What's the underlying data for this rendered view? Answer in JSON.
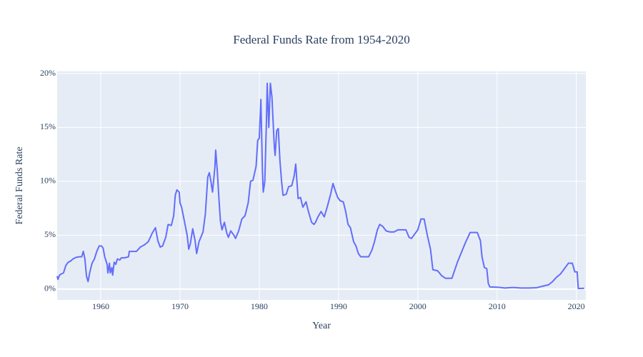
{
  "chart_data": {
    "type": "line",
    "title": "Federal Funds Rate from 1954-2020",
    "x_label": "Year",
    "y_label": "Federal Funds Rate",
    "color": "#636efa",
    "grid": true,
    "xlim": [
      1954.5,
      2021.2
    ],
    "ylim": [
      -1.0,
      20.2
    ],
    "xticks": [
      1960,
      1970,
      1980,
      1990,
      2000,
      2010,
      2020
    ],
    "yticks": [
      {
        "value": 0,
        "label": "0%"
      },
      {
        "value": 5,
        "label": "5%"
      },
      {
        "value": 10,
        "label": "10%"
      },
      {
        "value": 15,
        "label": "15%"
      },
      {
        "value": 20,
        "label": "20%"
      }
    ],
    "x": [
      1954.5,
      1954.6,
      1954.8,
      1955.0,
      1955.3,
      1955.6,
      1955.9,
      1956.2,
      1956.5,
      1956.9,
      1957.3,
      1957.6,
      1957.8,
      1958.0,
      1958.2,
      1958.4,
      1958.6,
      1958.9,
      1959.2,
      1959.5,
      1959.8,
      1960.1,
      1960.3,
      1960.5,
      1960.8,
      1960.9,
      1961.1,
      1961.2,
      1961.4,
      1961.5,
      1961.7,
      1961.9,
      1962.1,
      1962.4,
      1962.6,
      1963.0,
      1963.5,
      1963.6,
      1964.0,
      1964.5,
      1965.0,
      1965.5,
      1966.0,
      1966.5,
      1966.9,
      1967.2,
      1967.5,
      1967.8,
      1968.2,
      1968.5,
      1968.9,
      1969.2,
      1969.4,
      1969.6,
      1969.9,
      1970.0,
      1970.2,
      1970.5,
      1970.9,
      1971.1,
      1971.3,
      1971.6,
      1971.9,
      1972.1,
      1972.4,
      1972.9,
      1973.2,
      1973.5,
      1973.7,
      1973.9,
      1974.1,
      1974.4,
      1974.5,
      1974.7,
      1974.9,
      1975.1,
      1975.3,
      1975.6,
      1975.9,
      1976.1,
      1976.4,
      1976.8,
      1977.0,
      1977.4,
      1977.8,
      1978.2,
      1978.6,
      1978.9,
      1979.2,
      1979.6,
      1979.8,
      1980.0,
      1980.2,
      1980.4,
      1980.5,
      1980.7,
      1980.9,
      1981.0,
      1981.2,
      1981.4,
      1981.6,
      1981.8,
      1981.9,
      1982.0,
      1982.2,
      1982.4,
      1982.6,
      1982.8,
      1983.0,
      1983.4,
      1983.7,
      1984.1,
      1984.4,
      1984.6,
      1984.9,
      1985.2,
      1985.5,
      1985.9,
      1986.2,
      1986.6,
      1986.9,
      1987.1,
      1987.4,
      1987.8,
      1988.2,
      1988.6,
      1989.0,
      1989.3,
      1989.6,
      1989.9,
      1990.2,
      1990.6,
      1990.9,
      1991.2,
      1991.5,
      1991.9,
      1992.2,
      1992.5,
      1992.8,
      1993.3,
      1993.8,
      1994.2,
      1994.5,
      1994.9,
      1995.2,
      1995.6,
      1996.0,
      1996.5,
      1997.0,
      1997.5,
      1998.0,
      1998.5,
      1998.9,
      1999.2,
      1999.6,
      2000.0,
      2000.4,
      2000.8,
      2001.2,
      2001.6,
      2001.9,
      2002.5,
      2003.0,
      2003.5,
      2004.3,
      2005.0,
      2006.0,
      2006.6,
      2007.5,
      2007.9,
      2008.1,
      2008.4,
      2008.7,
      2008.9,
      2009.1,
      2010.0,
      2011.0,
      2012.0,
      2013.0,
      2014.0,
      2015.0,
      2015.9,
      2016.5,
      2017.0,
      2017.5,
      2018.0,
      2018.5,
      2019.0,
      2019.5,
      2019.8,
      2020.1,
      2020.25,
      2021.0
    ],
    "values": [
      1.2,
      0.9,
      1.3,
      1.4,
      1.5,
      2.2,
      2.5,
      2.6,
      2.8,
      2.95,
      3.0,
      3.0,
      3.5,
      2.8,
      1.2,
      0.7,
      1.5,
      2.4,
      2.8,
      3.5,
      4.0,
      4.0,
      3.8,
      3.0,
      2.3,
      1.5,
      2.4,
      1.5,
      2.0,
      1.3,
      2.5,
      2.3,
      2.8,
      2.7,
      2.9,
      2.9,
      3.0,
      3.5,
      3.5,
      3.5,
      3.9,
      4.1,
      4.4,
      5.2,
      5.7,
      4.5,
      3.9,
      4.0,
      4.8,
      6.0,
      5.9,
      6.8,
      8.7,
      9.2,
      9.0,
      8.0,
      7.6,
      6.5,
      5.0,
      3.7,
      4.2,
      5.6,
      4.5,
      3.3,
      4.4,
      5.3,
      7.0,
      10.4,
      10.8,
      10.0,
      9.0,
      11.3,
      12.9,
      11.0,
      8.5,
      6.3,
      5.5,
      6.2,
      5.2,
      4.8,
      5.4,
      5.0,
      4.7,
      5.4,
      6.5,
      6.8,
      8.0,
      10.0,
      10.1,
      11.4,
      13.8,
      14.0,
      17.6,
      11.0,
      9.0,
      10.0,
      15.5,
      19.1,
      15.0,
      19.1,
      17.8,
      14.7,
      13.2,
      12.4,
      14.7,
      14.9,
      12.0,
      10.1,
      8.7,
      8.8,
      9.5,
      9.6,
      10.5,
      11.6,
      8.4,
      8.5,
      7.6,
      8.1,
      7.2,
      6.2,
      6.0,
      6.2,
      6.7,
      7.2,
      6.7,
      7.7,
      8.8,
      9.8,
      9.1,
      8.5,
      8.2,
      8.1,
      7.2,
      6.0,
      5.7,
      4.4,
      4.0,
      3.3,
      3.0,
      3.0,
      3.0,
      3.6,
      4.3,
      5.5,
      6.0,
      5.8,
      5.4,
      5.3,
      5.3,
      5.5,
      5.5,
      5.5,
      4.8,
      4.7,
      5.1,
      5.5,
      6.5,
      6.5,
      5.0,
      3.7,
      1.8,
      1.7,
      1.25,
      1.0,
      1.0,
      2.5,
      4.3,
      5.25,
      5.25,
      4.5,
      3.0,
      2.0,
      1.9,
      0.5,
      0.2,
      0.18,
      0.1,
      0.15,
      0.1,
      0.1,
      0.13,
      0.3,
      0.4,
      0.7,
      1.1,
      1.4,
      1.9,
      2.4,
      2.4,
      1.6,
      1.6,
      0.05,
      0.08
    ]
  }
}
